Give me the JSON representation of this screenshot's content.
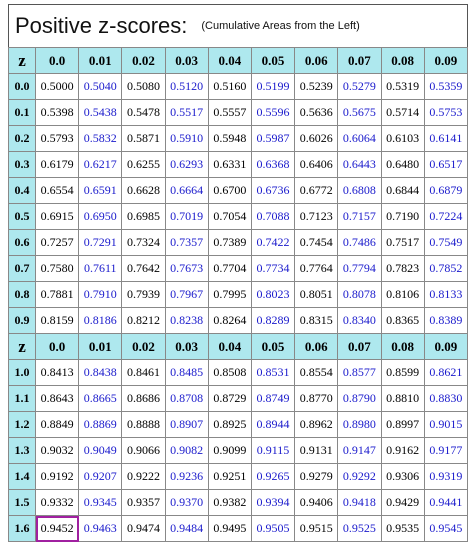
{
  "title": "Positive z-scores:",
  "subtitle": "(Cumulative Areas from the Left)",
  "colors": {
    "header_bg": "#aee8ee",
    "alt_text": "#1a1acc",
    "highlight": "#a020a0"
  },
  "corner_label": "z",
  "columns": [
    "0.0",
    "0.01",
    "0.02",
    "0.03",
    "0.04",
    "0.05",
    "0.06",
    "0.07",
    "0.08",
    "0.09"
  ],
  "rows": [
    {
      "z": "0.0",
      "values": [
        "0.5000",
        "0.5040",
        "0.5080",
        "0.5120",
        "0.5160",
        "0.5199",
        "0.5239",
        "0.5279",
        "0.5319",
        "0.5359"
      ]
    },
    {
      "z": "0.1",
      "values": [
        "0.5398",
        "0.5438",
        "0.5478",
        "0.5517",
        "0.5557",
        "0.5596",
        "0.5636",
        "0.5675",
        "0.5714",
        "0.5753"
      ]
    },
    {
      "z": "0.2",
      "values": [
        "0.5793",
        "0.5832",
        "0.5871",
        "0.5910",
        "0.5948",
        "0.5987",
        "0.6026",
        "0.6064",
        "0.6103",
        "0.6141"
      ]
    },
    {
      "z": "0.3",
      "values": [
        "0.6179",
        "0.6217",
        "0.6255",
        "0.6293",
        "0.6331",
        "0.6368",
        "0.6406",
        "0.6443",
        "0.6480",
        "0.6517"
      ]
    },
    {
      "z": "0.4",
      "values": [
        "0.6554",
        "0.6591",
        "0.6628",
        "0.6664",
        "0.6700",
        "0.6736",
        "0.6772",
        "0.6808",
        "0.6844",
        "0.6879"
      ]
    },
    {
      "z": "0.5",
      "values": [
        "0.6915",
        "0.6950",
        "0.6985",
        "0.7019",
        "0.7054",
        "0.7088",
        "0.7123",
        "0.7157",
        "0.7190",
        "0.7224"
      ]
    },
    {
      "z": "0.6",
      "values": [
        "0.7257",
        "0.7291",
        "0.7324",
        "0.7357",
        "0.7389",
        "0.7422",
        "0.7454",
        "0.7486",
        "0.7517",
        "0.7549"
      ]
    },
    {
      "z": "0.7",
      "values": [
        "0.7580",
        "0.7611",
        "0.7642",
        "0.7673",
        "0.7704",
        "0.7734",
        "0.7764",
        "0.7794",
        "0.7823",
        "0.7852"
      ]
    },
    {
      "z": "0.8",
      "values": [
        "0.7881",
        "0.7910",
        "0.7939",
        "0.7967",
        "0.7995",
        "0.8023",
        "0.8051",
        "0.8078",
        "0.8106",
        "0.8133"
      ]
    },
    {
      "z": "0.9",
      "values": [
        "0.8159",
        "0.8186",
        "0.8212",
        "0.8238",
        "0.8264",
        "0.8289",
        "0.8315",
        "0.8340",
        "0.8365",
        "0.8389"
      ]
    },
    {
      "z": "1.0",
      "values": [
        "0.8413",
        "0.8438",
        "0.8461",
        "0.8485",
        "0.8508",
        "0.8531",
        "0.8554",
        "0.8577",
        "0.8599",
        "0.8621"
      ]
    },
    {
      "z": "1.1",
      "values": [
        "0.8643",
        "0.8665",
        "0.8686",
        "0.8708",
        "0.8729",
        "0.8749",
        "0.8770",
        "0.8790",
        "0.8810",
        "0.8830"
      ]
    },
    {
      "z": "1.2",
      "values": [
        "0.8849",
        "0.8869",
        "0.8888",
        "0.8907",
        "0.8925",
        "0.8944",
        "0.8962",
        "0.8980",
        "0.8997",
        "0.9015"
      ]
    },
    {
      "z": "1.3",
      "values": [
        "0.9032",
        "0.9049",
        "0.9066",
        "0.9082",
        "0.9099",
        "0.9115",
        "0.9131",
        "0.9147",
        "0.9162",
        "0.9177"
      ]
    },
    {
      "z": "1.4",
      "values": [
        "0.9192",
        "0.9207",
        "0.9222",
        "0.9236",
        "0.9251",
        "0.9265",
        "0.9279",
        "0.9292",
        "0.9306",
        "0.9319"
      ]
    },
    {
      "z": "1.5",
      "values": [
        "0.9332",
        "0.9345",
        "0.9357",
        "0.9370",
        "0.9382",
        "0.9394",
        "0.9406",
        "0.9418",
        "0.9429",
        "0.9441"
      ]
    },
    {
      "z": "1.6",
      "values": [
        "0.9452",
        "0.9463",
        "0.9474",
        "0.9484",
        "0.9495",
        "0.9505",
        "0.9515",
        "0.9525",
        "0.9535",
        "0.9545"
      ]
    }
  ],
  "repeat_header_after_row": 9,
  "highlight": {
    "row": 16,
    "col": 0
  }
}
